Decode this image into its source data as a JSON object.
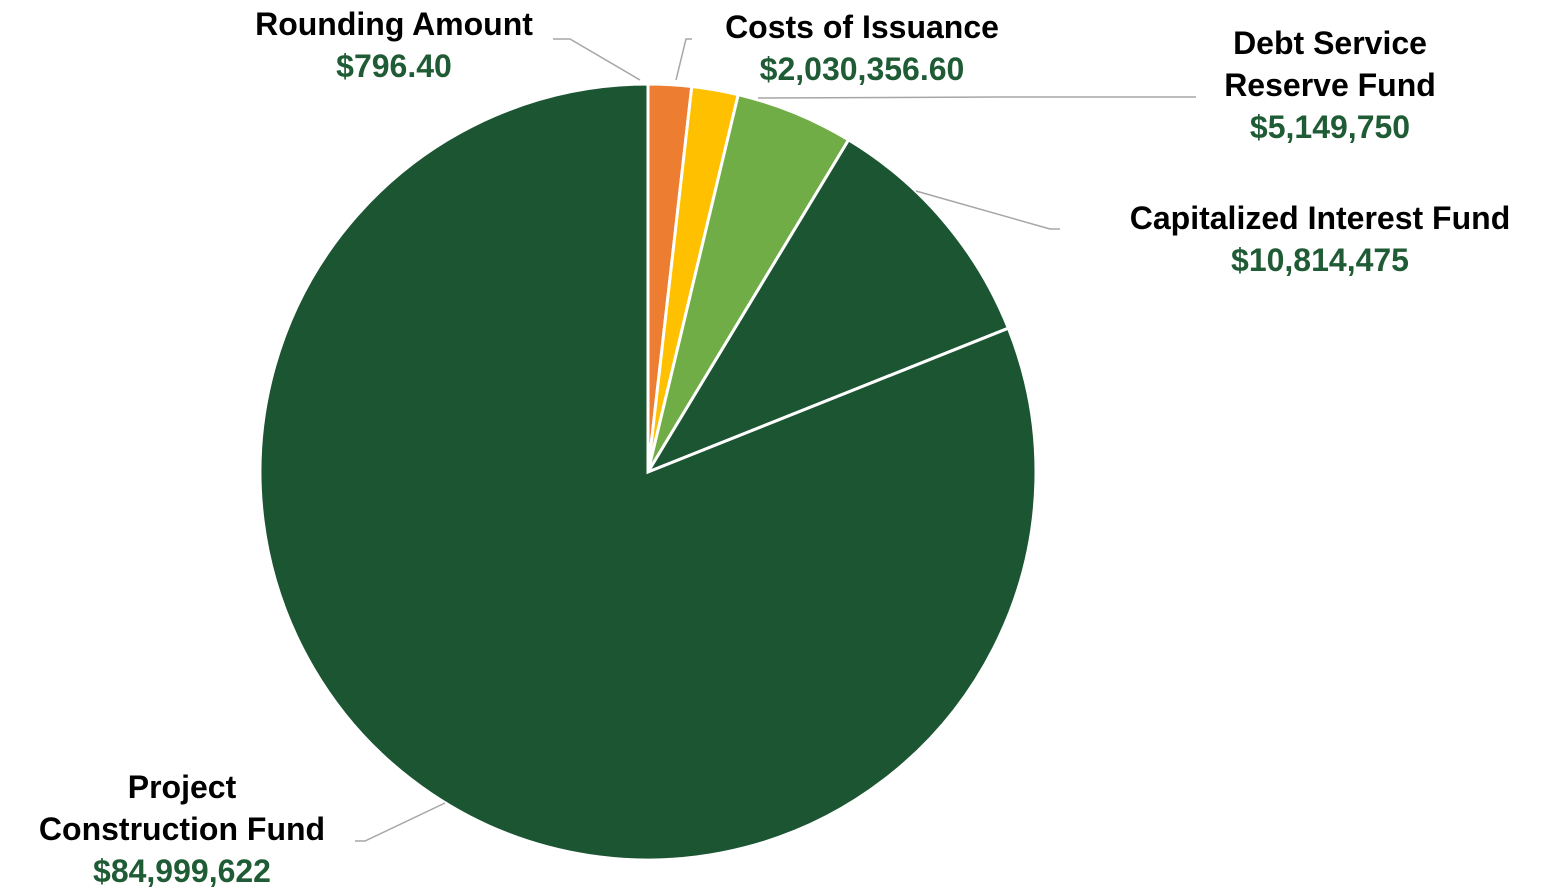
{
  "chart_data": {
    "type": "pie",
    "title": "",
    "start_angle_deg": 0,
    "direction": "clockwise",
    "slices": [
      {
        "label_lines": [
          "Rounding Amount"
        ],
        "value": 796.4,
        "value_label": "$796.40",
        "color": "#ed7d31"
      },
      {
        "label_lines": [
          "Costs of Issuance"
        ],
        "value": 2030356.6,
        "value_label": "$2,030,356.60",
        "color": "#ffc000"
      },
      {
        "label_lines": [
          "Debt Service",
          "Reserve Fund"
        ],
        "value": 5149750,
        "value_label": "$5,149,750",
        "color": "#70ad47"
      },
      {
        "label_lines": [
          "Capitalized Interest Fund"
        ],
        "value": 10814475,
        "value_label": "$10,814,475",
        "color": "#1c5532"
      },
      {
        "label_lines": [
          "Project",
          "Construction Fund"
        ],
        "value": 84999622,
        "value_label": "$84,999,622",
        "color": "#1c5532"
      }
    ],
    "value_label_color": "#1f5c35",
    "legend": "none"
  }
}
